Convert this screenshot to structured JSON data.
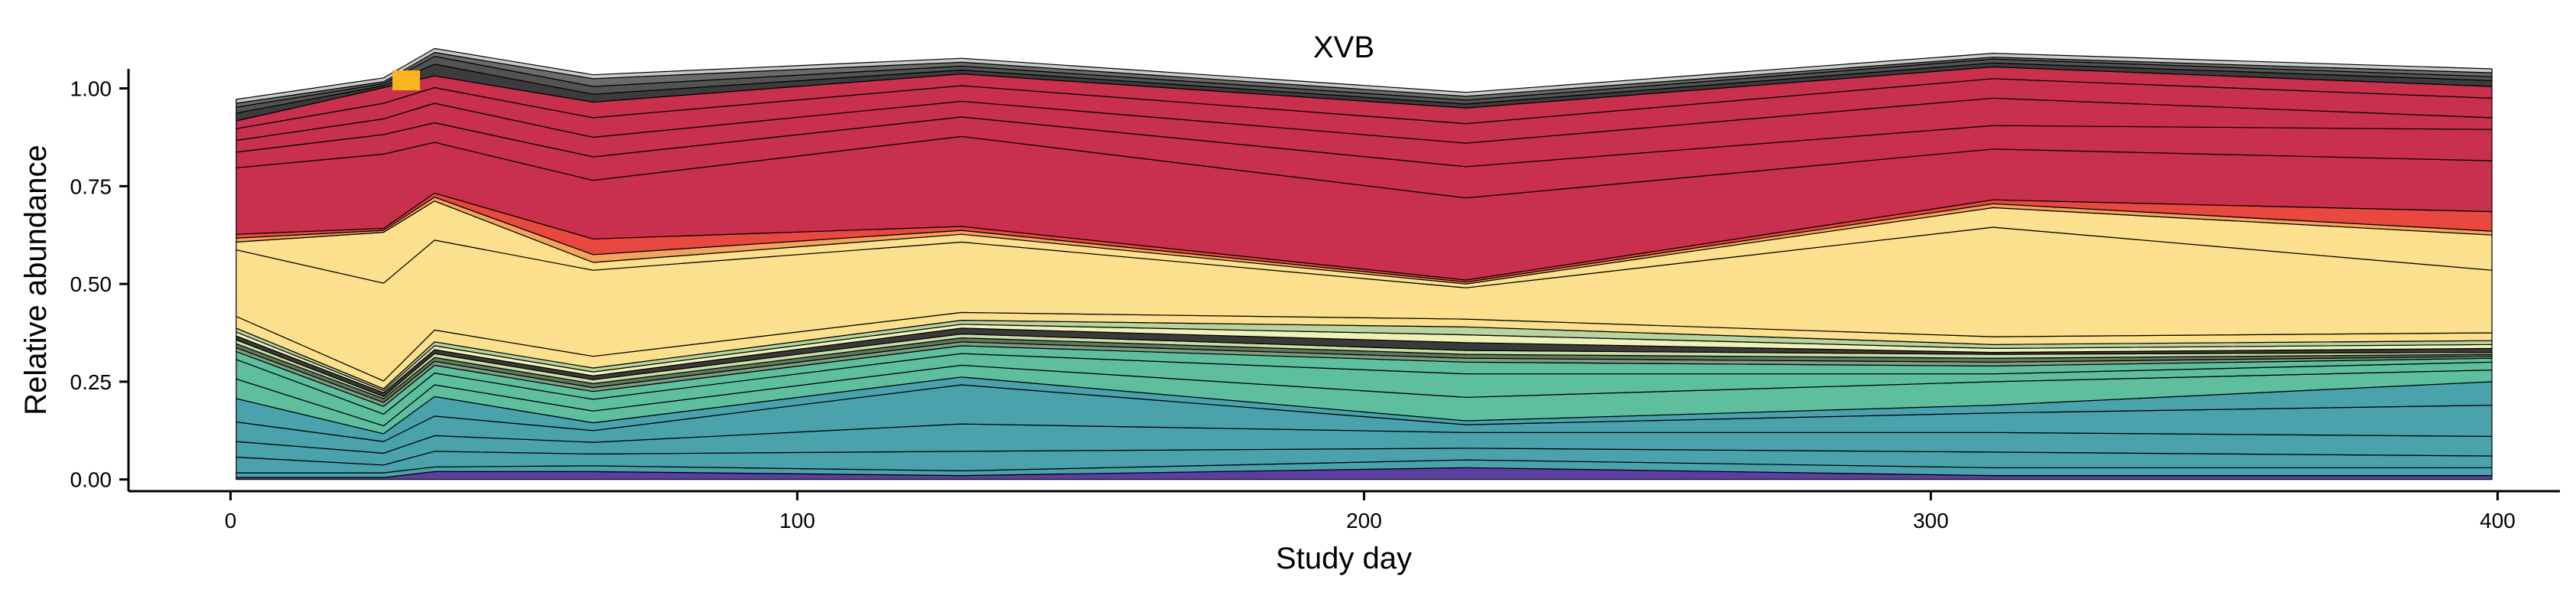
{
  "chart_data": {
    "type": "area",
    "stacked": true,
    "title": "XVB",
    "xlabel": "Study day",
    "ylabel": "Relative abundance",
    "xlim": [
      -18,
      411
    ],
    "ylim": [
      -0.03,
      1.05
    ],
    "xticks": [
      0,
      100,
      200,
      300,
      400
    ],
    "yticks": [
      0.0,
      0.25,
      0.5,
      0.75,
      1.0
    ],
    "ytick_labels": [
      "0.00",
      "0.25",
      "0.50",
      "0.75",
      "1.00"
    ],
    "x": [
      1,
      27,
      36,
      64,
      129,
      218,
      311,
      399
    ],
    "marker": {
      "x": 31,
      "color": "#F9B51D"
    },
    "series": [
      {
        "color": "#5B3FA0",
        "values": [
          0.005,
          0.005,
          0.02,
          0.02,
          0.01,
          0.03,
          0.01,
          0.01
        ]
      },
      {
        "color": "#4AA2AC",
        "values": [
          0.012,
          0.012,
          0.012,
          0.015,
          0.012,
          0.02,
          0.02,
          0.02
        ]
      },
      {
        "color": "#4AA2AC",
        "values": [
          0.04,
          0.02,
          0.04,
          0.03,
          0.05,
          0.03,
          0.04,
          0.03
        ]
      },
      {
        "color": "#4AA2AC",
        "values": [
          0.04,
          0.03,
          0.04,
          0.03,
          0.07,
          0.04,
          0.05,
          0.05
        ]
      },
      {
        "color": "#4AA2AC",
        "values": [
          0.05,
          0.03,
          0.05,
          0.03,
          0.1,
          0.02,
          0.05,
          0.08
        ]
      },
      {
        "color": "#4AA2AC",
        "values": [
          0.06,
          0.02,
          0.05,
          0.02,
          0.02,
          0.01,
          0.02,
          0.06
        ]
      },
      {
        "color": "#5DBF9E",
        "values": [
          0.05,
          0.02,
          0.03,
          0.03,
          0.03,
          0.06,
          0.06,
          0.03
        ]
      },
      {
        "color": "#5DBF9E",
        "values": [
          0.05,
          0.03,
          0.03,
          0.03,
          0.03,
          0.06,
          0.02,
          0.02
        ]
      },
      {
        "color": "#5DBF9E",
        "values": [
          0.02,
          0.02,
          0.02,
          0.02,
          0.02,
          0.03,
          0.02,
          0.01
        ]
      },
      {
        "color": "#7E9F7F",
        "values": [
          0.01,
          0.01,
          0.01,
          0.01,
          0.01,
          0.01,
          0.01,
          0.005
        ]
      },
      {
        "color": "#5E7A5E",
        "values": [
          0.01,
          0.01,
          0.01,
          0.01,
          0.01,
          0.01,
          0.01,
          0.005
        ]
      },
      {
        "color": "#C9DDA0",
        "values": [
          0.01,
          0.005,
          0.01,
          0.01,
          0.01,
          0.01,
          0.01,
          0.005
        ]
      },
      {
        "color": "#3A3A3A",
        "values": [
          0.01,
          0.01,
          0.01,
          0.01,
          0.015,
          0.02,
          0.005,
          0.01
        ]
      },
      {
        "color": "#EEF2B8",
        "values": [
          0.01,
          0.005,
          0.01,
          0.01,
          0.01,
          0.02,
          0.01,
          0.01
        ]
      },
      {
        "color": "#B9D49E",
        "values": [
          0.01,
          0.005,
          0.01,
          0.01,
          0.01,
          0.02,
          0.01,
          0.01
        ]
      },
      {
        "color": "#FCE08E",
        "values": [
          0.03,
          0.02,
          0.03,
          0.03,
          0.02,
          0.02,
          0.02,
          0.02
        ]
      },
      {
        "color": "#FCE08E",
        "values": [
          0.17,
          0.25,
          0.23,
          0.22,
          0.18,
          0.08,
          0.28,
          0.16
        ]
      },
      {
        "color": "#FCE08E",
        "values": [
          0.02,
          0.13,
          0.1,
          0.02,
          0.02,
          0.01,
          0.05,
          0.09
        ]
      },
      {
        "color": "#F4A35E",
        "values": [
          0.01,
          0.005,
          0.01,
          0.02,
          0.01,
          0.005,
          0.01,
          0.01
        ]
      },
      {
        "color": "#E8483F",
        "values": [
          0.01,
          0.005,
          0.01,
          0.04,
          0.01,
          0.005,
          0.01,
          0.05
        ]
      },
      {
        "color": "#C9304D",
        "values": [
          0.17,
          0.19,
          0.13,
          0.15,
          0.23,
          0.21,
          0.13,
          0.13
        ]
      },
      {
        "color": "#C9304D",
        "values": [
          0.04,
          0.05,
          0.05,
          0.06,
          0.05,
          0.08,
          0.06,
          0.08
        ]
      },
      {
        "color": "#C9304D",
        "values": [
          0.03,
          0.04,
          0.05,
          0.05,
          0.04,
          0.06,
          0.07,
          0.03
        ]
      },
      {
        "color": "#C9304D",
        "values": [
          0.03,
          0.04,
          0.04,
          0.05,
          0.04,
          0.05,
          0.05,
          0.05
        ]
      },
      {
        "color": "#C9304D",
        "values": [
          0.02,
          0.04,
          0.03,
          0.04,
          0.03,
          0.04,
          0.03,
          0.03
        ]
      },
      {
        "color": "#3C3C3C",
        "values": [
          0.02,
          0.005,
          0.03,
          0.02,
          0.01,
          0.01,
          0.01,
          0.015
        ]
      },
      {
        "color": "#535353",
        "values": [
          0.015,
          0.005,
          0.02,
          0.02,
          0.01,
          0.01,
          0.01,
          0.01
        ]
      },
      {
        "color": "#6B6B6B",
        "values": [
          0.01,
          0.005,
          0.01,
          0.02,
          0.01,
          0.01,
          0.005,
          0.01
        ]
      },
      {
        "color": "#C9C9C9",
        "values": [
          0.01,
          0.01,
          0.01,
          0.01,
          0.01,
          0.01,
          0.01,
          0.01
        ]
      }
    ]
  }
}
